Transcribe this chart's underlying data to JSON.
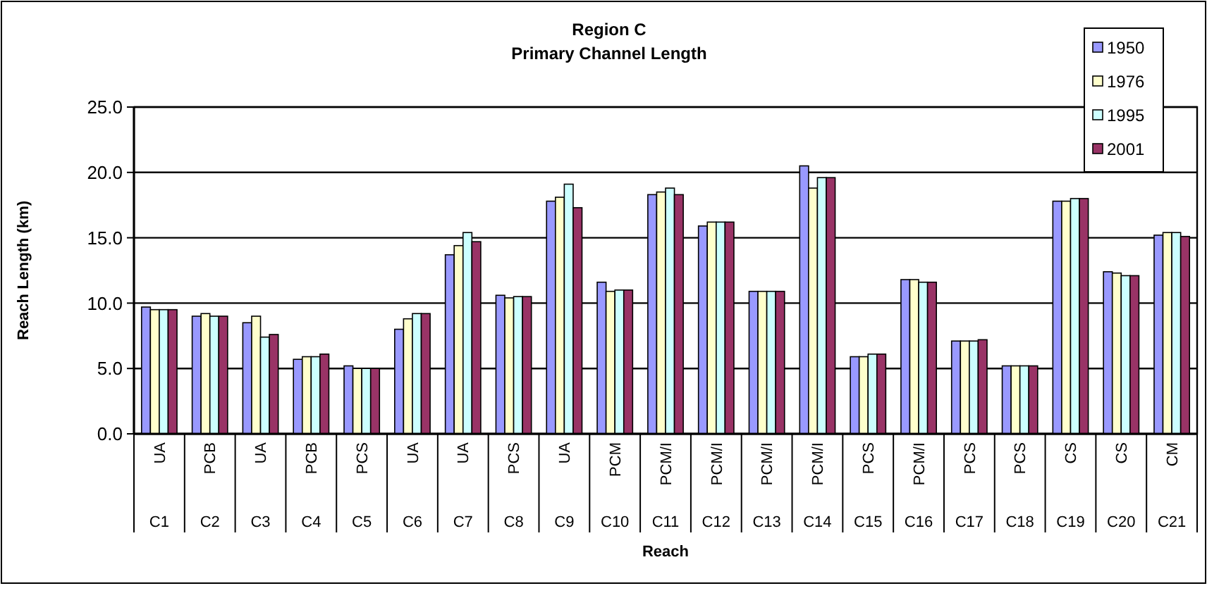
{
  "chart_data": {
    "type": "bar",
    "title": "Region C",
    "subtitle": "Primary Channel Length",
    "xlabel": "Reach",
    "ylabel": "Reach Length (km)",
    "categories": [
      "C1",
      "C2",
      "C3",
      "C4",
      "C5",
      "C6",
      "C7",
      "C8",
      "C9",
      "C10",
      "C11",
      "C12",
      "C13",
      "C14",
      "C15",
      "C16",
      "C17",
      "C18",
      "C19",
      "C20",
      "C21"
    ],
    "annotations": [
      "UA",
      "PCB",
      "UA",
      "PCB",
      "PCS",
      "UA",
      "UA",
      "PCS",
      "UA",
      "PCM",
      "PCM/I",
      "PCM/I",
      "PCM/I",
      "PCM/I",
      "PCS",
      "PCM/I",
      "PCS",
      "PCS",
      "CS",
      "CS",
      "CM"
    ],
    "series": [
      {
        "name": "1950",
        "color": "#9999ff",
        "values": [
          9.7,
          9.0,
          8.5,
          5.7,
          5.2,
          8.0,
          13.7,
          10.6,
          17.8,
          11.6,
          18.3,
          15.9,
          10.9,
          20.5,
          5.9,
          11.8,
          7.1,
          5.2,
          17.8,
          12.4,
          15.2
        ]
      },
      {
        "name": "1976",
        "color": "#ffffcc",
        "values": [
          9.5,
          9.2,
          9.0,
          5.9,
          5.0,
          8.8,
          14.4,
          10.4,
          18.1,
          10.9,
          18.5,
          16.2,
          10.9,
          18.8,
          5.9,
          11.8,
          7.1,
          5.2,
          17.8,
          12.3,
          15.4
        ]
      },
      {
        "name": "1995",
        "color": "#ccffff",
        "values": [
          9.5,
          9.0,
          7.4,
          5.9,
          5.0,
          9.2,
          15.4,
          10.5,
          19.1,
          11.0,
          18.8,
          16.2,
          10.9,
          19.6,
          6.1,
          11.6,
          7.1,
          5.2,
          18.0,
          12.1,
          15.4
        ]
      },
      {
        "name": "2001",
        "color": "#993366",
        "values": [
          9.5,
          9.0,
          7.6,
          6.1,
          5.0,
          9.2,
          14.7,
          10.5,
          17.3,
          11.0,
          18.3,
          16.2,
          10.9,
          19.6,
          6.1,
          11.6,
          7.2,
          5.2,
          18.0,
          12.1,
          15.1
        ]
      }
    ],
    "ylim": [
      0,
      25
    ],
    "yticks": [
      {
        "value": 0,
        "label": "0.0"
      },
      {
        "value": 5,
        "label": "5.0"
      },
      {
        "value": 10,
        "label": "10.0"
      },
      {
        "value": 15,
        "label": "15.0"
      },
      {
        "value": 20,
        "label": "20.0"
      },
      {
        "value": 25,
        "label": "25.0"
      }
    ],
    "grid": "y",
    "legend": "top right"
  }
}
